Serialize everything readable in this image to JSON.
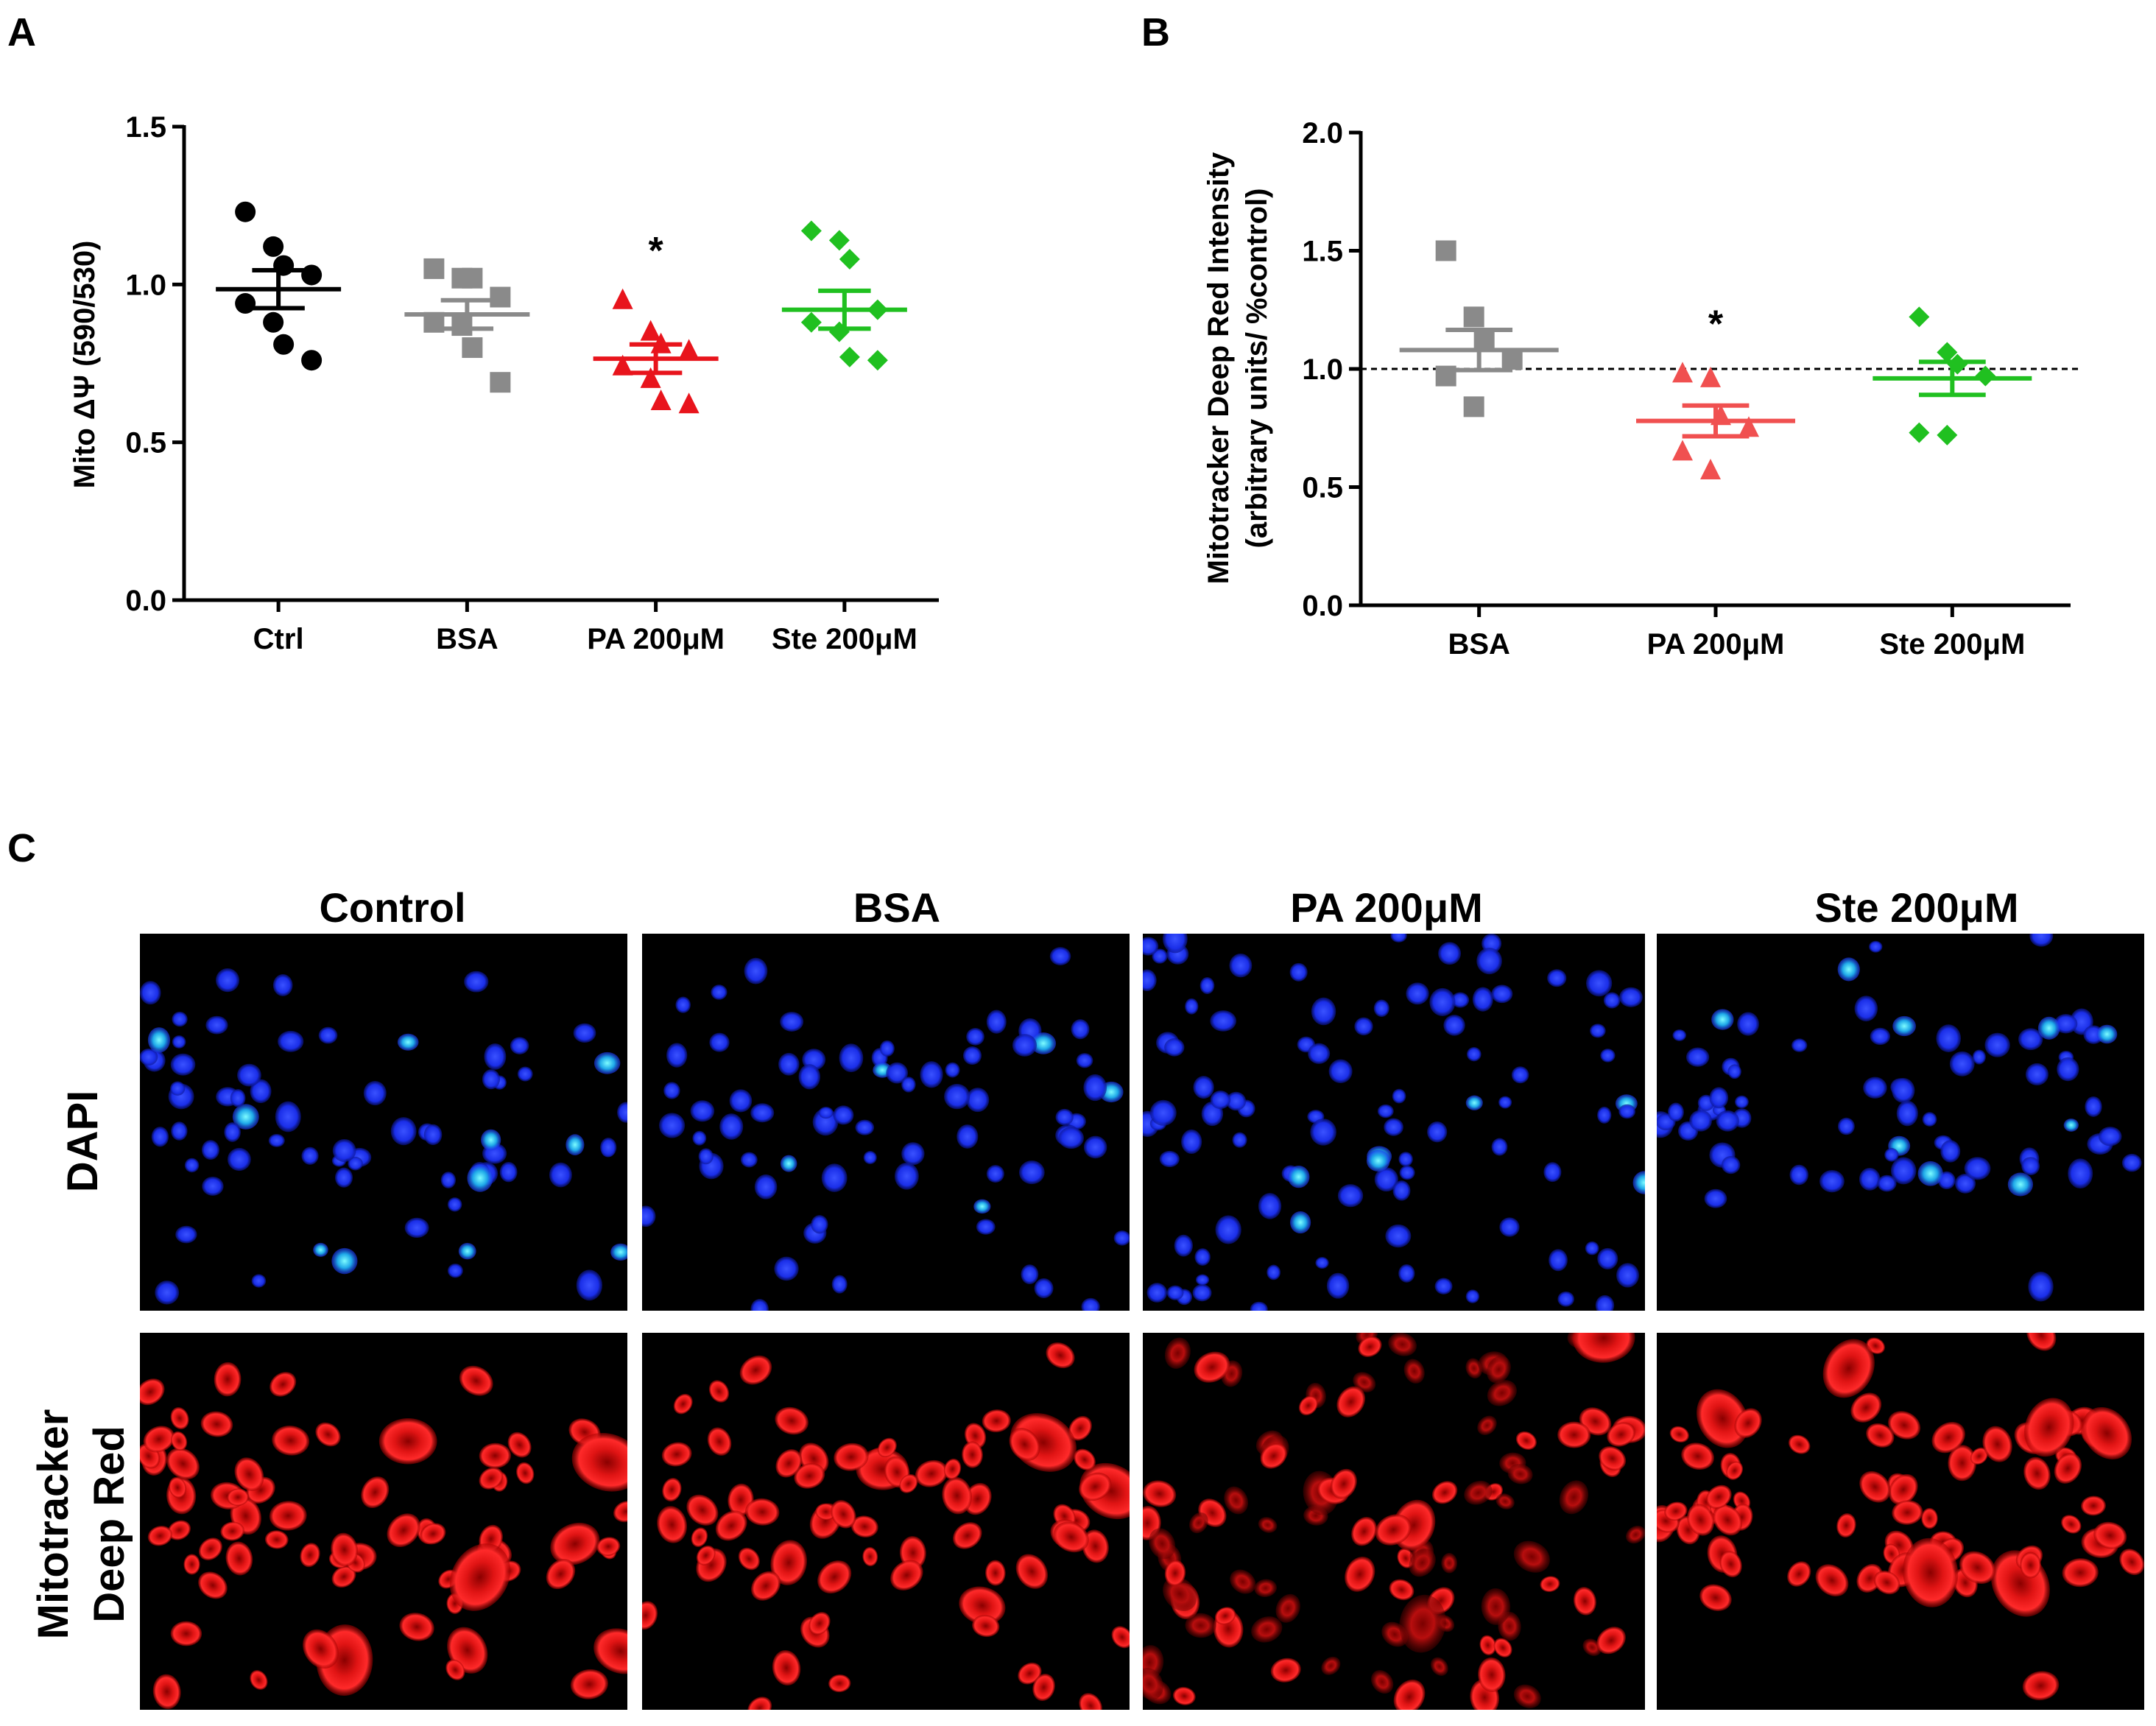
{
  "panel_labels": [
    "A",
    "B",
    "C"
  ],
  "chart_data": [
    {
      "type": "scatter",
      "panel": "A",
      "ylabel": "Mito ΔΨ (590/530)",
      "ylim": [
        0,
        1.5
      ],
      "yticks": [
        "0.0",
        "0.5",
        "1.0",
        "1.5"
      ],
      "yticks_values": [
        0,
        0.5,
        1.0,
        1.5
      ],
      "categories": [
        "Ctrl",
        "BSA",
        "PA 200μM",
        "Ste 200μM"
      ],
      "series": [
        {
          "category": "Ctrl",
          "marker": "circle",
          "color": "#000000",
          "values": [
            1.23,
            1.12,
            1.06,
            1.03,
            0.94,
            0.88,
            0.81,
            0.76
          ],
          "mean": 0.985,
          "sem": 0.06
        },
        {
          "category": "BSA",
          "marker": "square",
          "color": "#8a8a8a",
          "values": [
            1.05,
            1.02,
            1.02,
            0.96,
            0.88,
            0.87,
            0.8,
            0.69
          ],
          "mean": 0.905,
          "sem": 0.045
        },
        {
          "category": "PA 200μM",
          "marker": "triangle",
          "color": "#e8141c",
          "values": [
            0.95,
            0.85,
            0.81,
            0.79,
            0.74,
            0.7,
            0.63,
            0.62
          ],
          "mean": 0.765,
          "sem": 0.045
        },
        {
          "category": "Ste 200μM",
          "marker": "diamond",
          "color": "#20c020",
          "values": [
            1.17,
            1.14,
            1.08,
            0.92,
            0.88,
            0.85,
            0.77,
            0.76
          ],
          "mean": 0.92,
          "sem": 0.06
        }
      ],
      "annotations": [
        {
          "category": "PA 200μM",
          "text": "*"
        }
      ],
      "grid": false
    },
    {
      "type": "scatter",
      "panel": "B",
      "ylabel_lines": [
        "Mitotracker Deep Red Intensity",
        "(arbitrary units/ %control)"
      ],
      "ylim": [
        0,
        2.0
      ],
      "yticks": [
        "0.0",
        "0.5",
        "1.0",
        "1.5",
        "2.0"
      ],
      "yticks_values": [
        0,
        0.5,
        1.0,
        1.5,
        2.0
      ],
      "categories": [
        "BSA",
        "PA 200μM",
        "Ste 200μM"
      ],
      "reference_line": 1.0,
      "series": [
        {
          "category": "BSA",
          "marker": "square",
          "color": "#8a8a8a",
          "values": [
            1.5,
            1.22,
            1.12,
            1.04,
            0.97,
            0.84
          ],
          "mean": 1.08,
          "sem": 0.085
        },
        {
          "category": "PA 200μM",
          "marker": "triangle",
          "color": "#f05050",
          "values": [
            0.98,
            0.96,
            0.8,
            0.75,
            0.65,
            0.57
          ],
          "mean": 0.78,
          "sem": 0.065
        },
        {
          "category": "Ste 200μM",
          "marker": "diamond",
          "color": "#20c020",
          "values": [
            1.22,
            1.07,
            1.02,
            0.97,
            0.73,
            0.72
          ],
          "mean": 0.96,
          "sem": 0.07
        }
      ],
      "annotations": [
        {
          "category": "PA 200μM",
          "text": "*"
        }
      ],
      "grid": false
    }
  ],
  "micrographs": {
    "columns": [
      "Control",
      "BSA",
      "PA 200μM",
      "Ste 200μM"
    ],
    "rows": [
      {
        "lines": [
          "DAPI"
        ],
        "stain": "blue",
        "color": "#1a2ee8"
      },
      {
        "lines": [
          "Mitotracker",
          "Deep Red"
        ],
        "stain": "red",
        "color": "#e81818"
      }
    ]
  }
}
